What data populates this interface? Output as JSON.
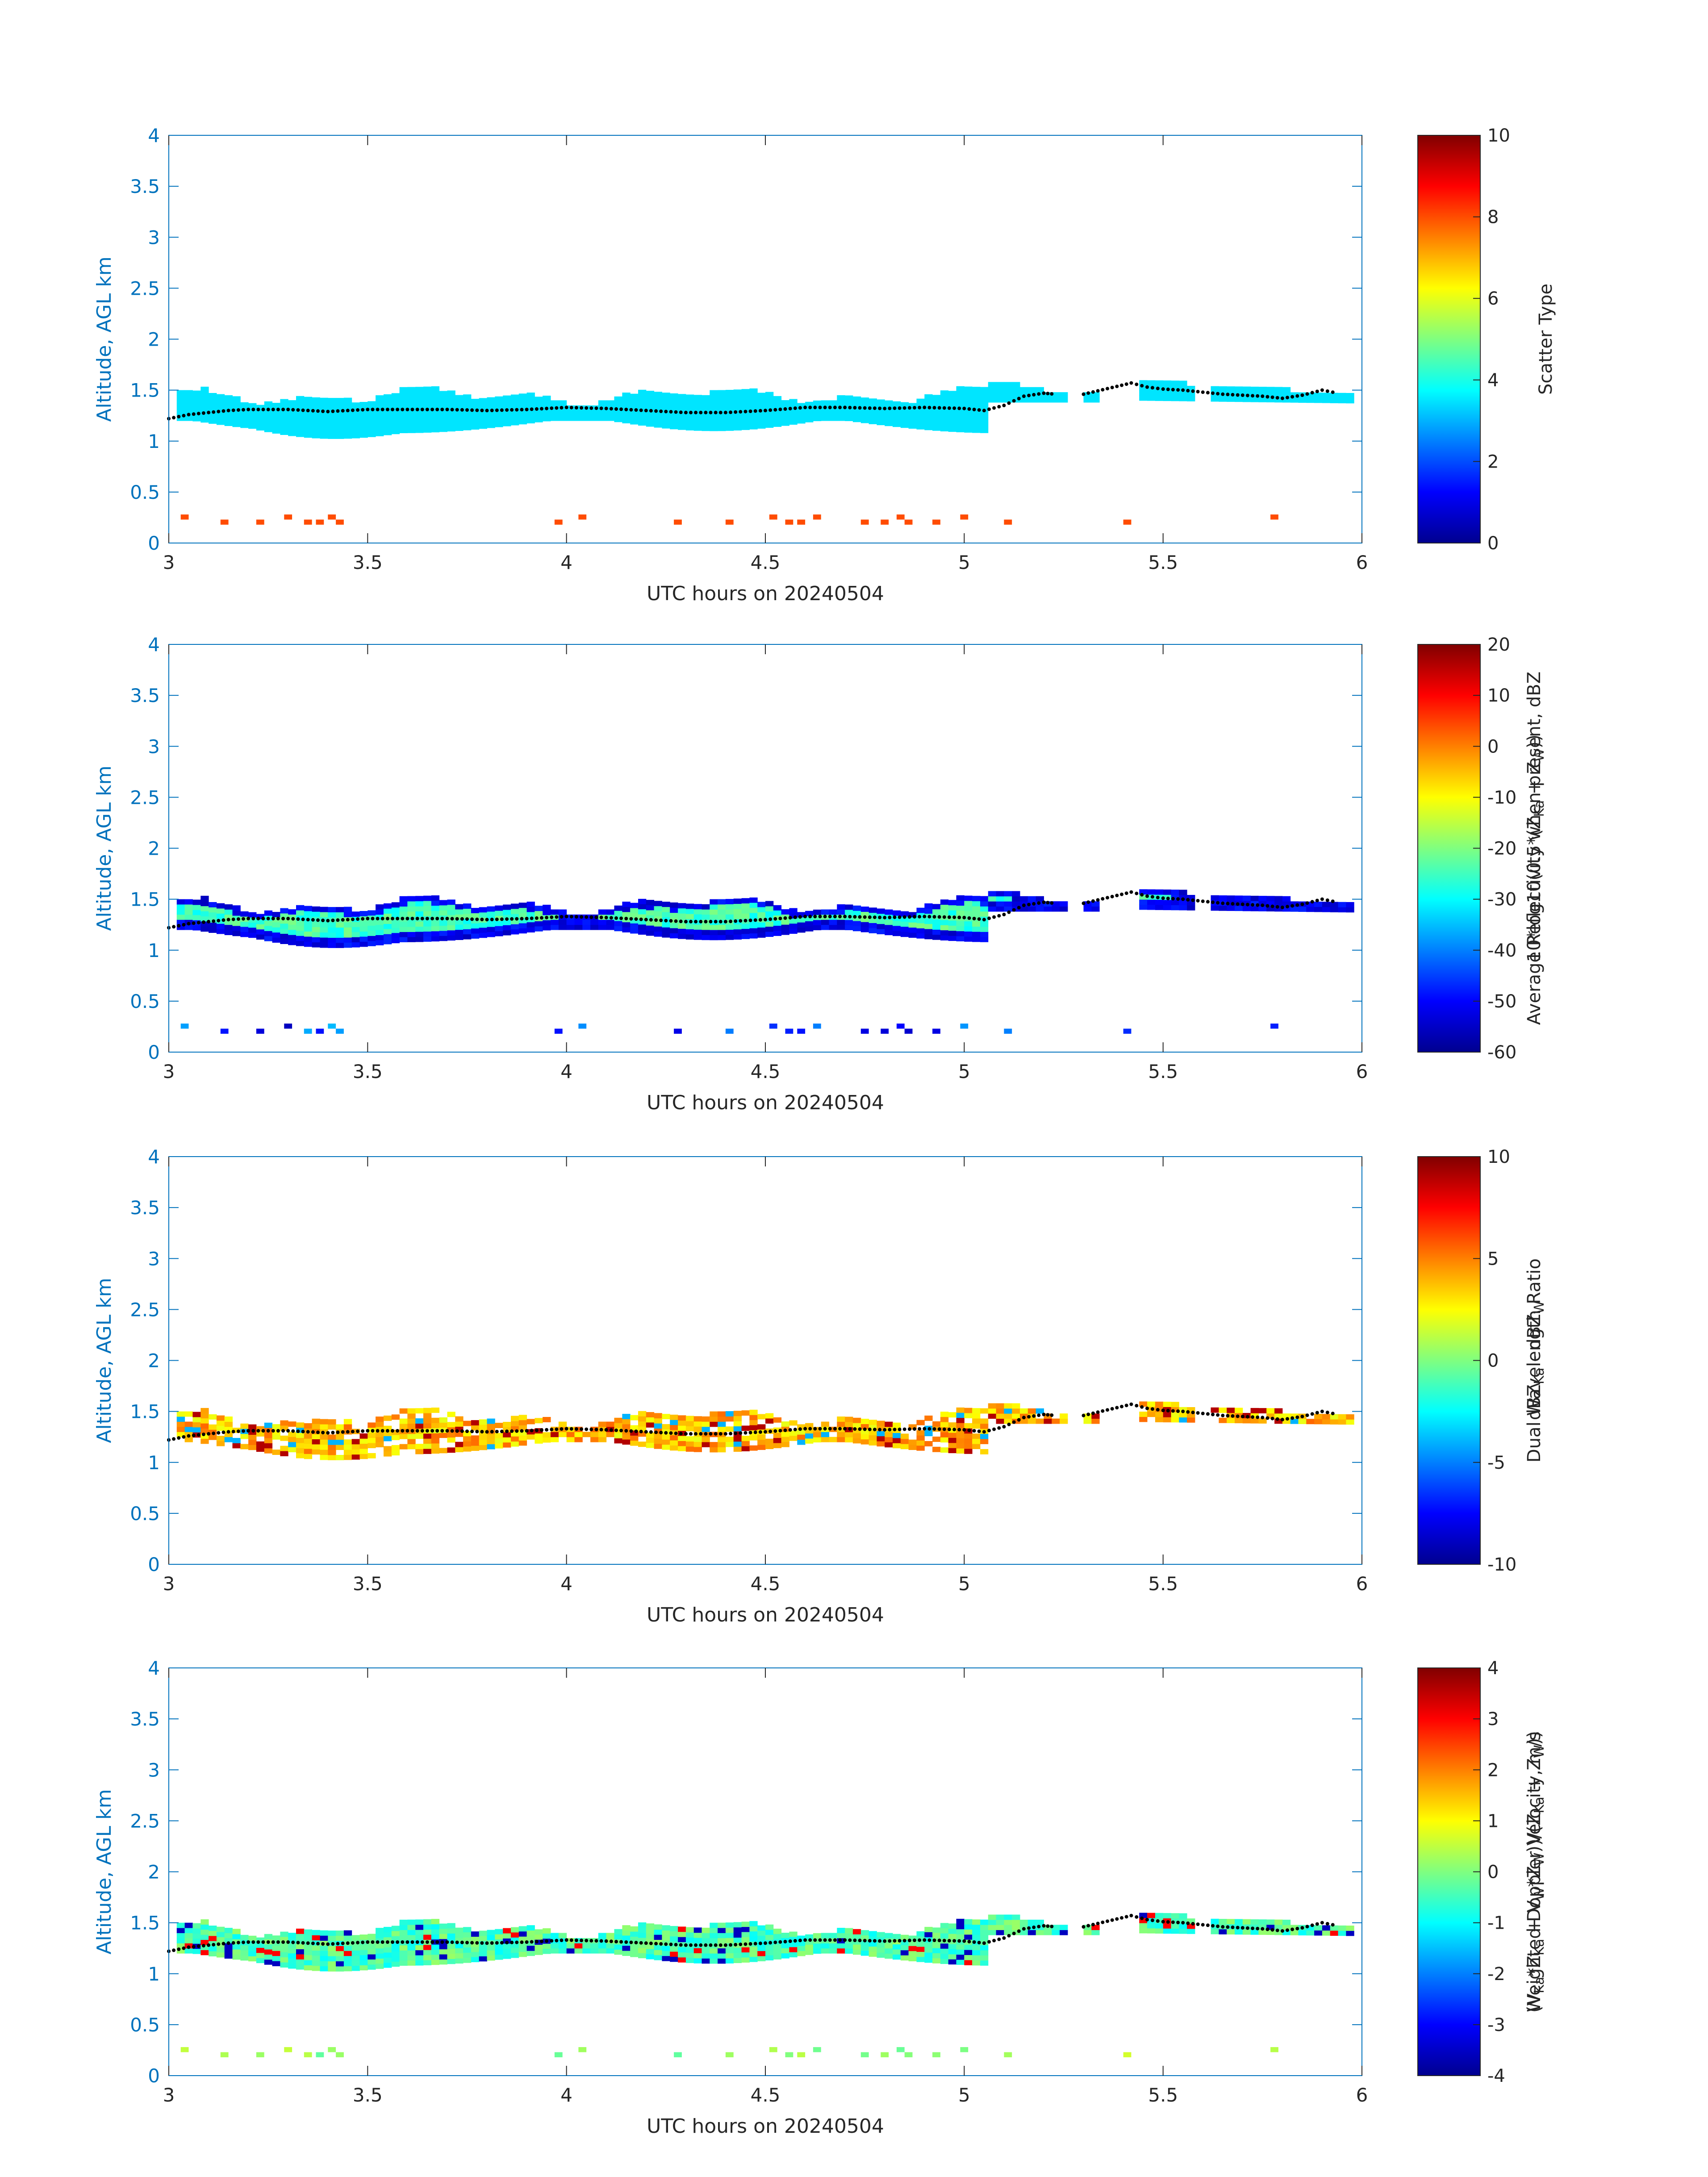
{
  "chart_data": [
    {
      "type": "heatmap",
      "title": "",
      "xlabel": "UTC hours on 20240504",
      "ylabel": "Altitude, AGL km",
      "xlim": [
        3,
        6
      ],
      "ylim": [
        0,
        4
      ],
      "xticks": [
        "3",
        "3.5",
        "4",
        "4.5",
        "5",
        "5.5",
        "6"
      ],
      "yticks": [
        "0",
        "0.5",
        "1",
        "1.5",
        "2",
        "2.5",
        "3",
        "3.5",
        "4"
      ],
      "colorbar": {
        "label_lines": [
          "Scatter Type"
        ],
        "range": [
          0,
          10
        ],
        "ticks": [
          "0",
          "2",
          "4",
          "6",
          "8",
          "10"
        ]
      },
      "description": "Cloud layer near 1.0-1.5 km with Scatter Type about 3.5 (cyan); scattered insects near 0.2-0.4 km with Scatter Type about 8 (red-orange); dotted black line marks cloud-layer mean altitude."
    },
    {
      "type": "heatmap",
      "title": "",
      "xlabel": "UTC hours on 20240504",
      "ylabel": "Altitude, AGL km",
      "xlim": [
        3,
        6
      ],
      "ylim": [
        0,
        4
      ],
      "xticks": [
        "3",
        "3.5",
        "4",
        "4.5",
        "5",
        "5.5",
        "6"
      ],
      "yticks": [
        "0",
        "0.5",
        "1",
        "1.5",
        "2",
        "2.5",
        "3",
        "3.5",
        "4"
      ],
      "colorbar": {
        "label_lines": [
          "Average Reflectivity when present, dBZ",
          "10*log10(0.5*(Z",
          "Ka",
          " + Z",
          "W",
          "))"
        ],
        "range": [
          -60,
          20
        ],
        "ticks": [
          "-60",
          "-50",
          "-40",
          "-30",
          "-20",
          "-10",
          "0",
          "10",
          "20"
        ]
      },
      "description": "Reflectivity roughly -55 dBZ at cloud edges to -25 dBZ in core."
    },
    {
      "type": "heatmap",
      "title": "",
      "xlabel": "UTC hours on 20240504",
      "ylabel": "Altitude, AGL km",
      "xlim": [
        3,
        6
      ],
      "ylim": [
        0,
        4
      ],
      "xticks": [
        "3",
        "3.5",
        "4",
        "4.5",
        "5",
        "5.5",
        "6"
      ],
      "yticks": [
        "0",
        "0.5",
        "1",
        "1.5",
        "2",
        "2.5",
        "3",
        "3.5",
        "4"
      ],
      "colorbar": {
        "label_lines": [
          "Dual Wavelength Ratio",
          "dBZ",
          "Ka",
          " - dBZ",
          "W"
        ],
        "range": [
          -10,
          10
        ],
        "ticks": [
          "-10",
          "-5",
          "0",
          "5",
          "10"
        ]
      },
      "description": "DWR mostly 2-5 dB (yellow) in the cloud layer with scattered extremes."
    },
    {
      "type": "heatmap",
      "title": "",
      "xlabel": "UTC hours on 20240504",
      "ylabel": "Altitude, AGL km",
      "xlim": [
        3,
        6
      ],
      "ylim": [
        0,
        4
      ],
      "xticks": [
        "3",
        "3.5",
        "4",
        "4.5",
        "5",
        "5.5",
        "6"
      ],
      "yticks": [
        "0",
        "0.5",
        "1",
        "1.5",
        "2",
        "2.5",
        "3",
        "3.5",
        "4"
      ],
      "colorbar": {
        "label_lines": [
          "Weighted Doppler Velocity, m/s",
          "(V",
          "Ka",
          "*Z",
          "Ka",
          " + V",
          "W",
          "*Z",
          "W",
          "))/(Z",
          "Ka",
          " + Z",
          "W",
          "))"
        ],
        "range": [
          -4,
          4
        ],
        "ticks": [
          "-4",
          "-3",
          "-2",
          "-1",
          "0",
          "1",
          "2",
          "3",
          "4"
        ]
      },
      "description": "Doppler velocity mostly -1 to 0 m/s (cyan-green) in the cloud layer."
    }
  ],
  "mean_altitude_line": {
    "x": [
      3.0,
      3.05,
      3.1,
      3.15,
      3.2,
      3.3,
      3.4,
      3.5,
      3.6,
      3.7,
      3.8,
      3.9,
      4.0,
      4.1,
      4.2,
      4.3,
      4.4,
      4.5,
      4.6,
      4.7,
      4.8,
      4.9,
      5.0,
      5.05,
      5.1,
      5.15,
      5.2,
      5.23
    ],
    "y": [
      1.22,
      1.26,
      1.28,
      1.3,
      1.31,
      1.31,
      1.29,
      1.31,
      1.31,
      1.31,
      1.3,
      1.31,
      1.33,
      1.32,
      1.3,
      1.28,
      1.28,
      1.3,
      1.33,
      1.33,
      1.32,
      1.33,
      1.32,
      1.3,
      1.35,
      1.44,
      1.47,
      1.46
    ]
  },
  "mean_altitude_line_late": {
    "x": [
      5.3,
      5.42,
      5.46,
      5.5,
      5.55,
      5.6,
      5.65,
      5.7,
      5.75,
      5.8,
      5.85,
      5.9,
      5.94
    ],
    "y": [
      1.46,
      1.57,
      1.53,
      1.51,
      1.5,
      1.48,
      1.46,
      1.45,
      1.44,
      1.42,
      1.45,
      1.5,
      1.47
    ]
  }
}
